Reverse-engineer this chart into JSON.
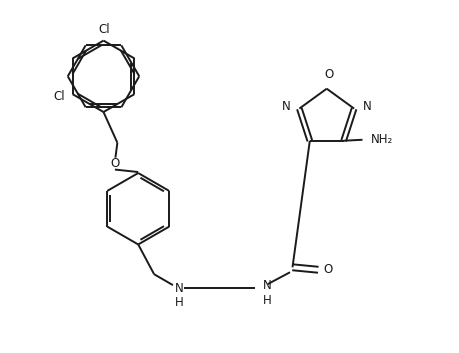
{
  "background_color": "#ffffff",
  "line_color": "#1a1a1a",
  "line_width": 1.4,
  "font_size": 8.5,
  "figsize": [
    4.59,
    3.53
  ],
  "dpi": 100,
  "xlim": [
    0,
    9.18
  ],
  "ylim": [
    0,
    7.06
  ]
}
